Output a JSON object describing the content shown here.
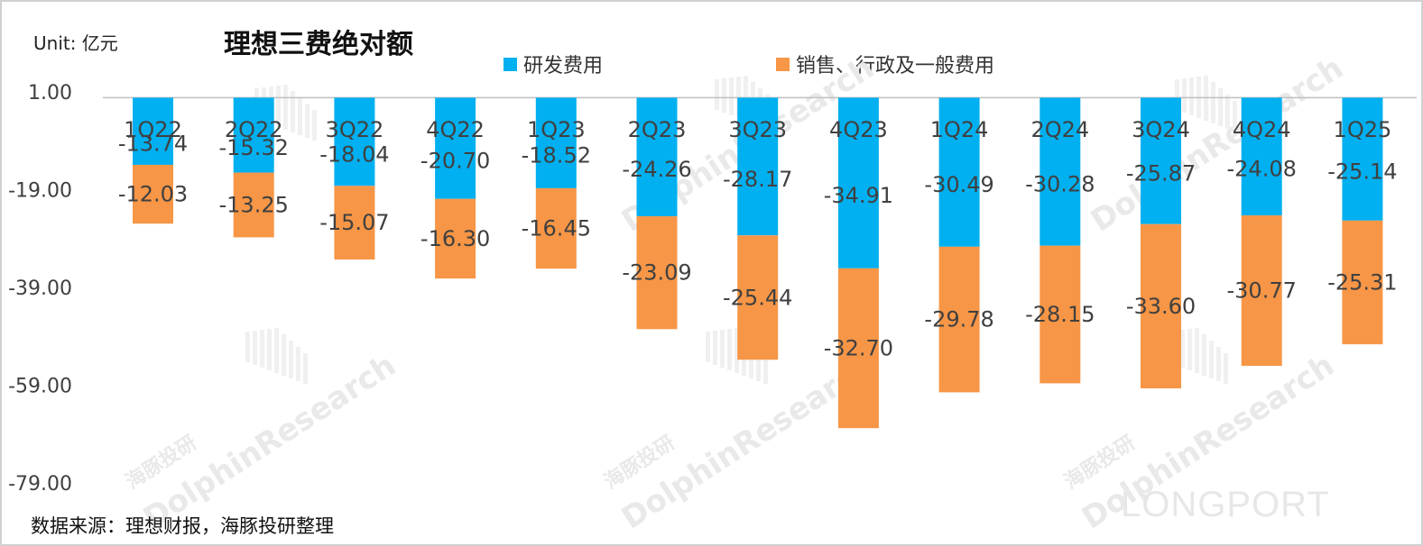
{
  "header": {
    "unit": "Unit: 亿元",
    "title": "理想三费绝对额"
  },
  "legend": {
    "rd": "研发费用",
    "sga": "销售、行政及一般费用"
  },
  "source": "数据来源：理想财报，海豚投研整理",
  "watermark": {
    "brand": "DolphinResearch",
    "cn": "海豚投研",
    "logo": "LONGPORT"
  },
  "colors": {
    "rd": "#00b0f0",
    "sga": "#f79646",
    "axis": "#bfbfbf",
    "text": "#404040"
  },
  "chart_data": {
    "type": "bar",
    "stacked": true,
    "categories": [
      "1Q22",
      "2Q22",
      "3Q22",
      "4Q22",
      "1Q23",
      "2Q23",
      "3Q23",
      "4Q23",
      "1Q24",
      "2Q24",
      "3Q24",
      "4Q24",
      "1Q25"
    ],
    "series": [
      {
        "name": "研发费用",
        "values": [
          -13.74,
          -15.32,
          -18.04,
          -20.7,
          -18.52,
          -24.26,
          -28.17,
          -34.91,
          -30.49,
          -30.28,
          -25.87,
          -24.08,
          -25.14
        ]
      },
      {
        "name": "销售、行政及一般费用",
        "values": [
          -12.03,
          -13.25,
          -15.07,
          -16.3,
          -16.45,
          -23.09,
          -25.44,
          -32.7,
          -29.78,
          -28.15,
          -33.6,
          -30.77,
          -25.31
        ]
      }
    ],
    "yticks": [
      1.0,
      -19.0,
      -39.0,
      -59.0,
      -79.0
    ],
    "ylim": [
      -79,
      1
    ],
    "baseline": 0,
    "grid": false,
    "legend_position": "top"
  }
}
